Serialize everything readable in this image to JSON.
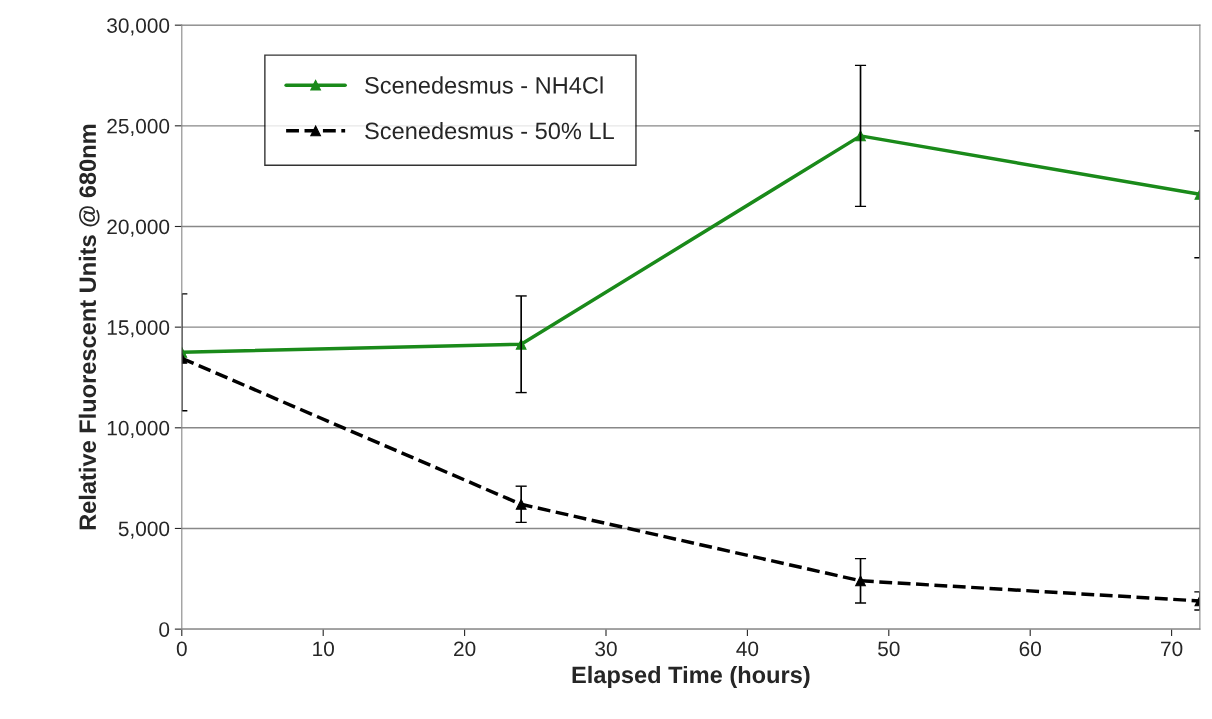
{
  "chart_data": {
    "type": "line",
    "xlabel": "Elapsed Time (hours)",
    "ylabel": "Relative Fluorescent Units @ 680nm",
    "x": [
      0,
      24,
      48,
      72
    ],
    "series": [
      {
        "name": "Scenedesmus - NH4Cl",
        "color": "#1a8a1a",
        "values": [
          13750,
          14150,
          24500,
          21600
        ],
        "errors": [
          2900,
          2400,
          3500,
          3150
        ],
        "line_style": "solid"
      },
      {
        "name": "Scenedesmus - 50% LL",
        "color": "#000000",
        "values": [
          13450,
          6200,
          2400,
          1400
        ],
        "errors": [
          null,
          900,
          1100,
          450
        ],
        "line_style": "dashed"
      }
    ],
    "xlim": [
      0,
      72
    ],
    "xticks": [
      0,
      10,
      20,
      30,
      40,
      50,
      60,
      70
    ],
    "ylim": [
      0,
      30000
    ],
    "yticks": [
      {
        "value": 0,
        "label": "0"
      },
      {
        "value": 5000,
        "label": "5,000"
      },
      {
        "value": 10000,
        "label": "10,000"
      },
      {
        "value": 15000,
        "label": "15,000"
      },
      {
        "value": 20000,
        "label": "20,000"
      },
      {
        "value": 25000,
        "label": "25,000"
      },
      {
        "value": 30000,
        "label": "30,000"
      }
    ],
    "grid": "y",
    "legend": "top left",
    "marker": "triangle"
  }
}
